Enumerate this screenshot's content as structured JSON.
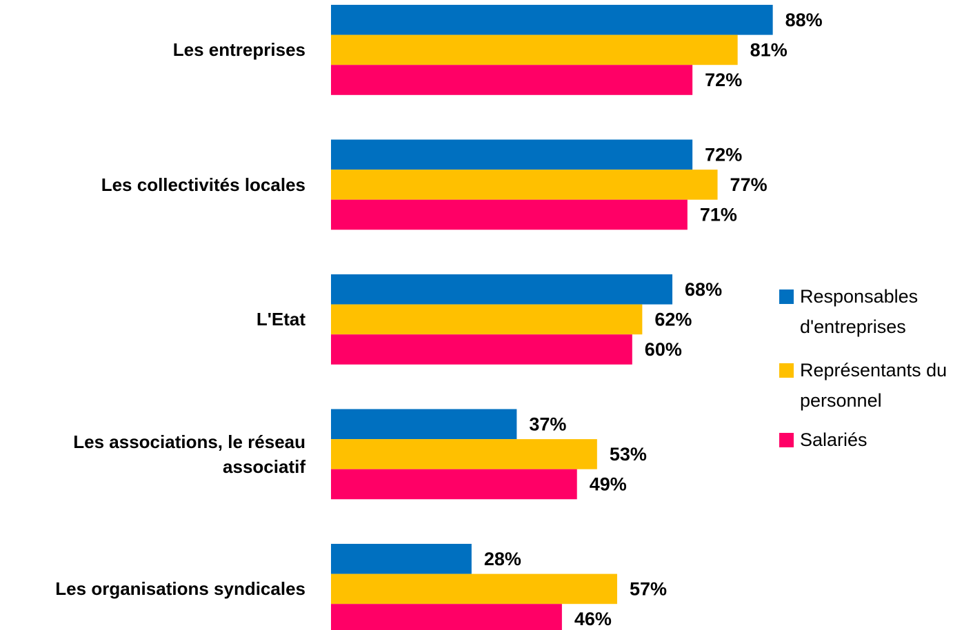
{
  "chart_data": {
    "type": "bar",
    "orientation": "horizontal",
    "categories": [
      "Les entreprises",
      "Les collectivités locales",
      "L'Etat",
      "Les associations, le réseau associatif",
      "Les organisations syndicales"
    ],
    "series": [
      {
        "name": "Responsables d'entreprises",
        "color": "#0070C0",
        "values": [
          88,
          72,
          68,
          37,
          28
        ],
        "value_labels": [
          "88%",
          "72%",
          "68%",
          "37%",
          "28%"
        ]
      },
      {
        "name": "Représentants du personnel",
        "color": "#FFC000",
        "values": [
          81,
          77,
          62,
          53,
          57
        ],
        "value_labels": [
          "81%",
          "77%",
          "62%",
          "53%",
          "57%"
        ]
      },
      {
        "name": "Salariés",
        "color": "#FF0066",
        "values": [
          72,
          71,
          60,
          49,
          46
        ],
        "value_labels": [
          "72%",
          "71%",
          "60%",
          "49%",
          "46%"
        ]
      }
    ],
    "xlim": [
      0,
      100
    ],
    "legend": "right"
  }
}
